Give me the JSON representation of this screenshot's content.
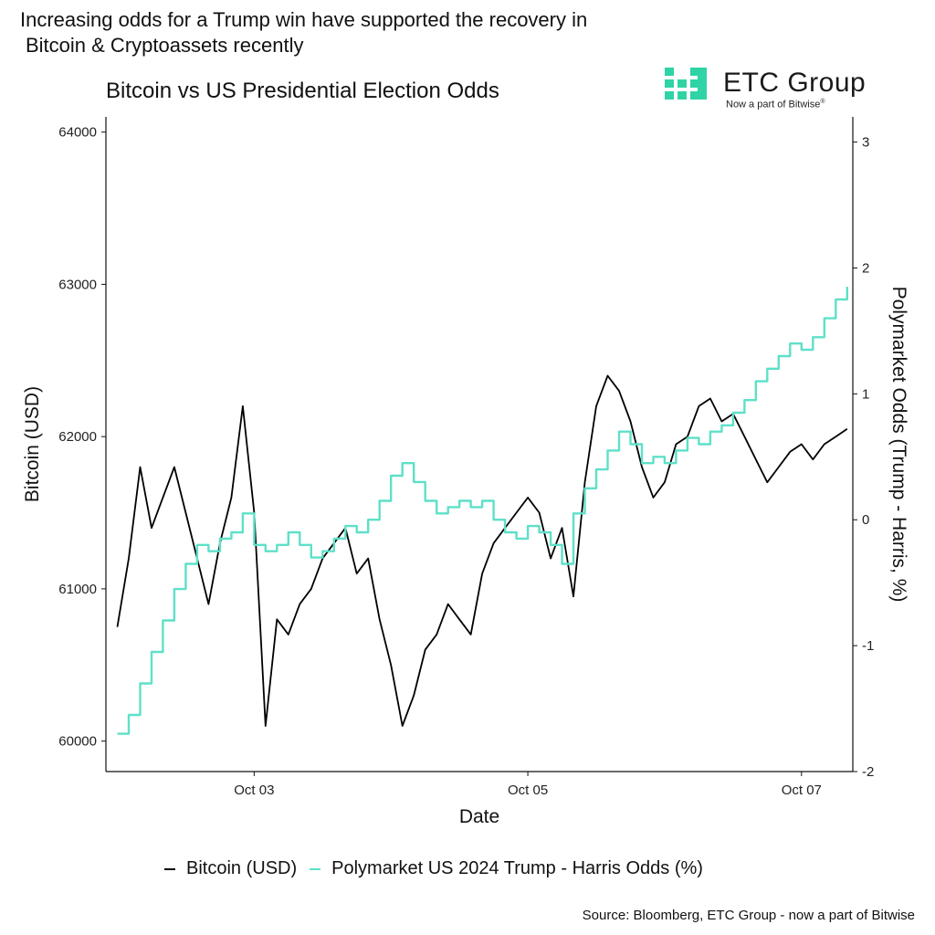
{
  "headline": {
    "line1": "Increasing odds for a Trump win have supported the recovery in",
    "line2": "Bitcoin & Cryptoassets recently"
  },
  "logo": {
    "name": "ETC Group",
    "tagline": "Now a part of Bitwise",
    "tagline_mark": "®",
    "color": "#2fd3a6"
  },
  "source": "Source: Bloomberg, ETC Group - now a part of Bitwise",
  "colors": {
    "bitcoin": "#000000",
    "odds": "#5ee0c8"
  },
  "chart_data": {
    "type": "line",
    "title": "Bitcoin vs US Presidential Election Odds",
    "xlabel": "Date",
    "ylabel": "Bitcoin (USD)",
    "y2label": "Polymarket Odds (Trump - Harris, %)",
    "xlim": [
      "2024-10-01T22:00",
      "2024-10-07T09:00"
    ],
    "x_ticks": [
      {
        "date": "2024-10-03T00:00",
        "label": "Oct 03"
      },
      {
        "date": "2024-10-05T00:00",
        "label": "Oct 05"
      },
      {
        "date": "2024-10-07T00:00",
        "label": "Oct 07"
      }
    ],
    "ylim": [
      59800,
      64100
    ],
    "y_ticks": [
      "60000",
      "61000",
      "62000",
      "63000",
      "64000"
    ],
    "y2lim": [
      -2.0,
      3.2
    ],
    "y2_ticks": [
      "-2",
      "-1",
      "0",
      "1",
      "2",
      "3"
    ],
    "grid": false,
    "legend_position": "bottom",
    "series": [
      {
        "name": "Bitcoin (USD)",
        "axis": "left",
        "x": [
          "2024-10-02T00:00",
          "2024-10-02T02:00",
          "2024-10-02T04:00",
          "2024-10-02T06:00",
          "2024-10-02T08:00",
          "2024-10-02T10:00",
          "2024-10-02T12:00",
          "2024-10-02T14:00",
          "2024-10-02T16:00",
          "2024-10-02T18:00",
          "2024-10-02T20:00",
          "2024-10-02T22:00",
          "2024-10-03T00:00",
          "2024-10-03T02:00",
          "2024-10-03T04:00",
          "2024-10-03T06:00",
          "2024-10-03T08:00",
          "2024-10-03T10:00",
          "2024-10-03T12:00",
          "2024-10-03T14:00",
          "2024-10-03T16:00",
          "2024-10-03T18:00",
          "2024-10-03T20:00",
          "2024-10-03T22:00",
          "2024-10-04T00:00",
          "2024-10-04T02:00",
          "2024-10-04T04:00",
          "2024-10-04T06:00",
          "2024-10-04T08:00",
          "2024-10-04T10:00",
          "2024-10-04T12:00",
          "2024-10-04T14:00",
          "2024-10-04T16:00",
          "2024-10-04T18:00",
          "2024-10-04T20:00",
          "2024-10-04T22:00",
          "2024-10-05T00:00",
          "2024-10-05T02:00",
          "2024-10-05T04:00",
          "2024-10-05T06:00",
          "2024-10-05T08:00",
          "2024-10-05T10:00",
          "2024-10-05T12:00",
          "2024-10-05T14:00",
          "2024-10-05T16:00",
          "2024-10-05T18:00",
          "2024-10-05T20:00",
          "2024-10-05T22:00",
          "2024-10-06T00:00",
          "2024-10-06T02:00",
          "2024-10-06T04:00",
          "2024-10-06T06:00",
          "2024-10-06T08:00",
          "2024-10-06T10:00",
          "2024-10-06T12:00",
          "2024-10-06T14:00",
          "2024-10-06T16:00",
          "2024-10-06T18:00",
          "2024-10-06T20:00",
          "2024-10-06T22:00",
          "2024-10-07T00:00",
          "2024-10-07T02:00",
          "2024-10-07T04:00",
          "2024-10-07T06:00",
          "2024-10-07T08:00"
        ],
        "y": [
          60750,
          61200,
          61800,
          61400,
          61600,
          61800,
          61500,
          61200,
          60900,
          61300,
          61600,
          62200,
          61500,
          60100,
          60800,
          60700,
          60900,
          61000,
          61200,
          61300,
          61400,
          61100,
          61200,
          60800,
          60500,
          60100,
          60300,
          60600,
          60700,
          60900,
          60800,
          60700,
          61100,
          61300,
          61400,
          61500,
          61600,
          61500,
          61200,
          61400,
          60950,
          61700,
          62200,
          62400,
          62300,
          62100,
          61800,
          61600,
          61700,
          61950,
          62000,
          62200,
          62250,
          62100,
          62150,
          62000,
          61850,
          61700,
          61800,
          61900,
          61950,
          61850,
          61950,
          62000,
          62050
        ]
      },
      {
        "name": "Polymarket US 2024 Trump - Harris Odds (%)",
        "axis": "right",
        "x": [
          "2024-10-02T00:00",
          "2024-10-02T02:00",
          "2024-10-02T04:00",
          "2024-10-02T06:00",
          "2024-10-02T08:00",
          "2024-10-02T10:00",
          "2024-10-02T12:00",
          "2024-10-02T14:00",
          "2024-10-02T16:00",
          "2024-10-02T18:00",
          "2024-10-02T20:00",
          "2024-10-02T22:00",
          "2024-10-03T00:00",
          "2024-10-03T02:00",
          "2024-10-03T04:00",
          "2024-10-03T06:00",
          "2024-10-03T08:00",
          "2024-10-03T10:00",
          "2024-10-03T12:00",
          "2024-10-03T14:00",
          "2024-10-03T16:00",
          "2024-10-03T18:00",
          "2024-10-03T20:00",
          "2024-10-03T22:00",
          "2024-10-04T00:00",
          "2024-10-04T02:00",
          "2024-10-04T04:00",
          "2024-10-04T06:00",
          "2024-10-04T08:00",
          "2024-10-04T10:00",
          "2024-10-04T12:00",
          "2024-10-04T14:00",
          "2024-10-04T16:00",
          "2024-10-04T18:00",
          "2024-10-04T20:00",
          "2024-10-04T22:00",
          "2024-10-05T00:00",
          "2024-10-05T02:00",
          "2024-10-05T04:00",
          "2024-10-05T06:00",
          "2024-10-05T08:00",
          "2024-10-05T10:00",
          "2024-10-05T12:00",
          "2024-10-05T14:00",
          "2024-10-05T16:00",
          "2024-10-05T18:00",
          "2024-10-05T20:00",
          "2024-10-05T22:00",
          "2024-10-06T00:00",
          "2024-10-06T02:00",
          "2024-10-06T04:00",
          "2024-10-06T06:00",
          "2024-10-06T08:00",
          "2024-10-06T10:00",
          "2024-10-06T12:00",
          "2024-10-06T14:00",
          "2024-10-06T16:00",
          "2024-10-06T18:00",
          "2024-10-06T20:00",
          "2024-10-06T22:00",
          "2024-10-07T00:00",
          "2024-10-07T02:00",
          "2024-10-07T04:00",
          "2024-10-07T06:00",
          "2024-10-07T08:00"
        ],
        "y": [
          -1.7,
          -1.55,
          -1.3,
          -1.05,
          -0.8,
          -0.55,
          -0.35,
          -0.2,
          -0.25,
          -0.15,
          -0.1,
          0.05,
          -0.2,
          -0.25,
          -0.2,
          -0.1,
          -0.2,
          -0.3,
          -0.25,
          -0.15,
          -0.05,
          -0.1,
          0.0,
          0.15,
          0.35,
          0.45,
          0.3,
          0.15,
          0.05,
          0.1,
          0.15,
          0.1,
          0.15,
          0.0,
          -0.1,
          -0.15,
          -0.05,
          -0.1,
          -0.2,
          -0.35,
          0.05,
          0.25,
          0.4,
          0.55,
          0.7,
          0.6,
          0.45,
          0.5,
          0.45,
          0.55,
          0.65,
          0.6,
          0.7,
          0.75,
          0.85,
          0.95,
          1.1,
          1.2,
          1.3,
          1.4,
          1.35,
          1.45,
          1.6,
          1.75,
          1.85
        ]
      }
    ]
  }
}
